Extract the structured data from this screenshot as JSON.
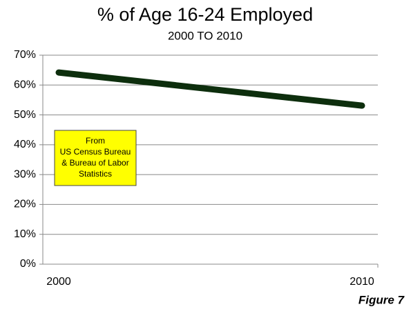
{
  "chart_data": {
    "type": "line",
    "title": "% of Age 16-24 Employed",
    "subtitle": "2000 TO 2010",
    "categories": [
      "2000",
      "2010"
    ],
    "values": [
      64.2,
      53.1
    ],
    "color": "#0d2e0d",
    "ylim": [
      0,
      70
    ],
    "yticks": [
      {
        "value": 0,
        "label": "0%"
      },
      {
        "value": 10,
        "label": "10%"
      },
      {
        "value": 20,
        "label": "20%"
      },
      {
        "value": 30,
        "label": "30%"
      },
      {
        "value": 40,
        "label": "40%"
      },
      {
        "value": 50,
        "label": "50%"
      },
      {
        "value": 60,
        "label": "60%"
      },
      {
        "value": 70,
        "label": "70%"
      }
    ],
    "grid": true,
    "annotation": [
      "From",
      "US Census Bureau",
      "& Bureau of Labor",
      "Statistics"
    ],
    "footer": "Figure 7"
  }
}
